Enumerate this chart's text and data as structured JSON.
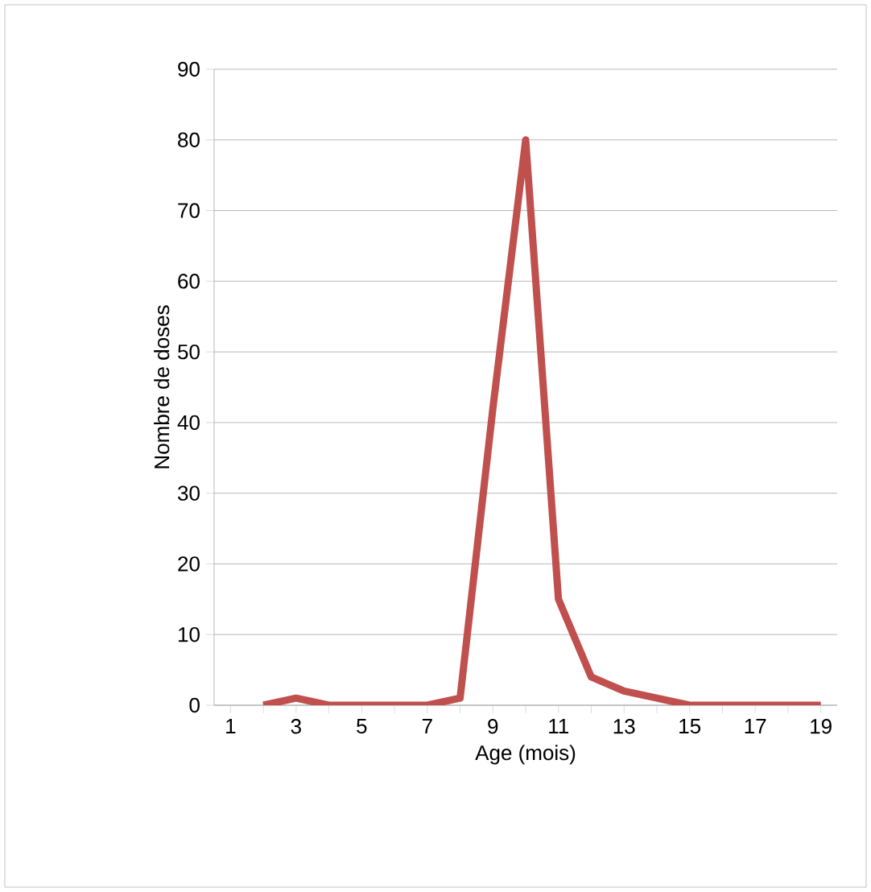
{
  "chart_data": {
    "type": "line",
    "xlabel": "Age (mois)",
    "ylabel": "Nombre de doses",
    "categories": [
      "1",
      null,
      "3",
      null,
      "5",
      null,
      "7",
      null,
      "9",
      null,
      "11",
      null,
      "13",
      null,
      "15",
      null,
      "17",
      null,
      "19"
    ],
    "series": [
      {
        "color": "#c0504d",
        "values": [
          null,
          0,
          1,
          0,
          0,
          0,
          0,
          1,
          42,
          80,
          15,
          4,
          2,
          1,
          0,
          0,
          0,
          0,
          0
        ]
      }
    ],
    "ylim": [
      0,
      90
    ],
    "yticks": [
      0,
      10,
      20,
      30,
      40,
      50,
      60,
      70,
      80,
      90
    ],
    "grid": "y",
    "marker": "none",
    "line_style": "solid"
  }
}
